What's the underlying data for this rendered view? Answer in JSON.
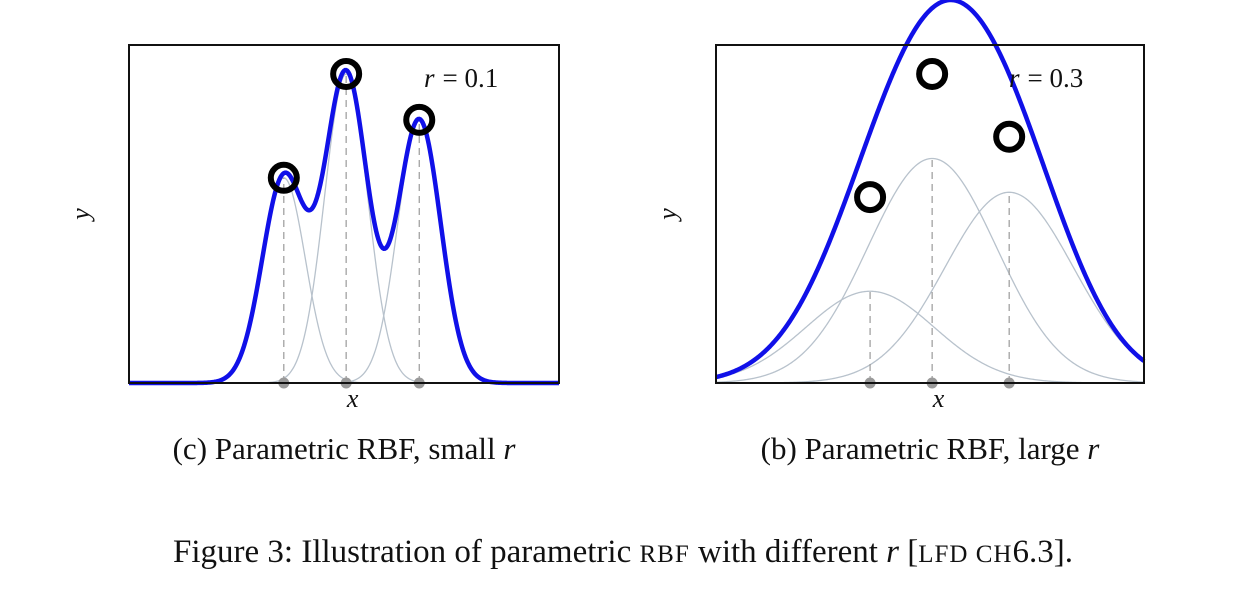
{
  "chart_data": [
    {
      "type": "line",
      "subtitle_prefix": "(c) Parametric RBF, small ",
      "subtitle_var": "r",
      "xlabel": "x",
      "ylabel": "y",
      "annotation_var": "r",
      "annotation_value": "= 0.1",
      "r": 0.1,
      "xlim": [
        -1.0,
        1.0
      ],
      "ylim": [
        0,
        1.4
      ],
      "centers": [
        -0.28,
        0.01,
        0.35
      ],
      "weights": [
        0.85,
        1.28,
        1.09
      ],
      "data_points": [
        [
          -0.28,
          0.85
        ],
        [
          0.01,
          1.28
        ],
        [
          0.35,
          1.09
        ]
      ],
      "colors": {
        "fit": "#1010e8",
        "basis": "#b8c2cc",
        "center": "#9a9a9a",
        "point": "#000000"
      }
    },
    {
      "type": "line",
      "subtitle_prefix": "(b) Parametric RBF, large ",
      "subtitle_var": "r",
      "xlabel": "x",
      "ylabel": "y",
      "annotation_var": "r",
      "annotation_value": "= 0.3",
      "r": 0.3,
      "xlim": [
        -1.0,
        1.0
      ],
      "ylim": [
        0,
        1.4
      ],
      "centers": [
        -0.28,
        0.01,
        0.37
      ],
      "weights": [
        0.38,
        0.93,
        0.79
      ],
      "data_points": [
        [
          -0.28,
          0.77
        ],
        [
          0.01,
          1.28
        ],
        [
          0.37,
          1.02
        ]
      ],
      "colors": {
        "fit": "#1010e8",
        "basis": "#b8c2cc",
        "center": "#9a9a9a",
        "point": "#000000"
      }
    }
  ],
  "caption": {
    "prefix": "Figure 3: Illustration of parametric ",
    "rbf": "RBF",
    "middle": " with different ",
    "var": "r",
    "ref_open": " [",
    "ref_text": "LFD CH",
    "ref_num": "6.3",
    "ref_close": "]."
  }
}
